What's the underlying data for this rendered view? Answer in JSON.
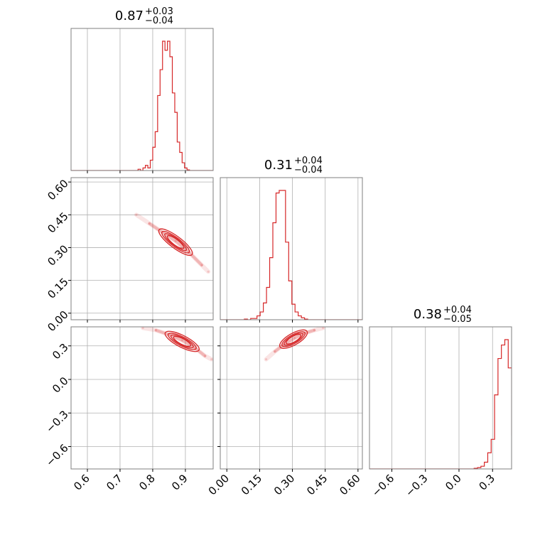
{
  "chart_data": {
    "type": "corner",
    "colors": {
      "series": "#d62728",
      "grid": "#b0b0b0",
      "frame": "#7f7f7f"
    },
    "grid": true,
    "parameters": [
      {
        "median": "0.87",
        "plus": "+0.03",
        "minus": "−0.04",
        "range": [
          0.55,
          0.985
        ],
        "ticks": [
          0.6,
          0.7,
          0.8,
          0.9
        ],
        "tick_labels": [
          "0.6",
          "0.7",
          "0.8",
          "0.9"
        ]
      },
      {
        "median": "0.31",
        "plus": "+0.04",
        "minus": "−0.04",
        "range": [
          -0.03,
          0.62
        ],
        "ticks": [
          0.0,
          0.15,
          0.3,
          0.45,
          0.6
        ],
        "tick_labels": [
          "0.00",
          "0.15",
          "0.30",
          "0.45",
          "0.60"
        ]
      },
      {
        "median": "0.38",
        "plus": "+0.04",
        "minus": "−0.05",
        "range": [
          -0.8,
          0.47
        ],
        "ticks": [
          -0.6,
          -0.3,
          0.0,
          0.3
        ],
        "tick_labels": [
          "−0.6",
          "−0.3",
          "0.0",
          "0.3"
        ]
      }
    ],
    "histograms": [
      {
        "param": 0,
        "bin_width": 0.0075,
        "edges_start": 0.755,
        "counts": [
          1,
          0,
          2,
          4,
          2,
          8,
          18,
          30,
          58,
          78,
          100,
          93,
          100,
          88,
          60,
          45,
          22,
          14,
          6,
          2,
          0.5
        ]
      },
      {
        "param": 1,
        "bin_width": 0.0145,
        "edges_start": 0.08,
        "counts": [
          0.5,
          0,
          1,
          1,
          3,
          6,
          13,
          25,
          48,
          75,
          98,
          100,
          100,
          60,
          30,
          12,
          6,
          3,
          1.5,
          0.5
        ]
      },
      {
        "param": 2,
        "bin_width": 0.0305,
        "edges_start": 0.135,
        "counts": [
          0.5,
          1,
          2,
          5,
          12,
          22,
          55,
          82,
          92,
          96,
          75,
          25,
          8
        ]
      }
    ],
    "pairs": [
      {
        "x_param": 0,
        "y_param": 1,
        "points": [
          [
            0.75,
            0.45
          ],
          [
            0.79,
            0.41
          ],
          [
            0.83,
            0.37
          ],
          [
            0.87,
            0.33
          ],
          [
            0.91,
            0.28
          ],
          [
            0.95,
            0.22
          ],
          [
            0.97,
            0.19
          ]
        ]
      },
      {
        "x_param": 0,
        "y_param": 2,
        "points": [
          [
            0.77,
            0.46
          ],
          [
            0.81,
            0.44
          ],
          [
            0.85,
            0.4
          ],
          [
            0.89,
            0.35
          ],
          [
            0.93,
            0.28
          ],
          [
            0.96,
            0.21
          ],
          [
            0.98,
            0.18
          ]
        ]
      },
      {
        "x_param": 1,
        "y_param": 2,
        "points": [
          [
            0.18,
            0.18
          ],
          [
            0.22,
            0.25
          ],
          [
            0.26,
            0.31
          ],
          [
            0.31,
            0.37
          ],
          [
            0.35,
            0.41
          ],
          [
            0.4,
            0.44
          ],
          [
            0.44,
            0.46
          ]
        ]
      }
    ]
  }
}
